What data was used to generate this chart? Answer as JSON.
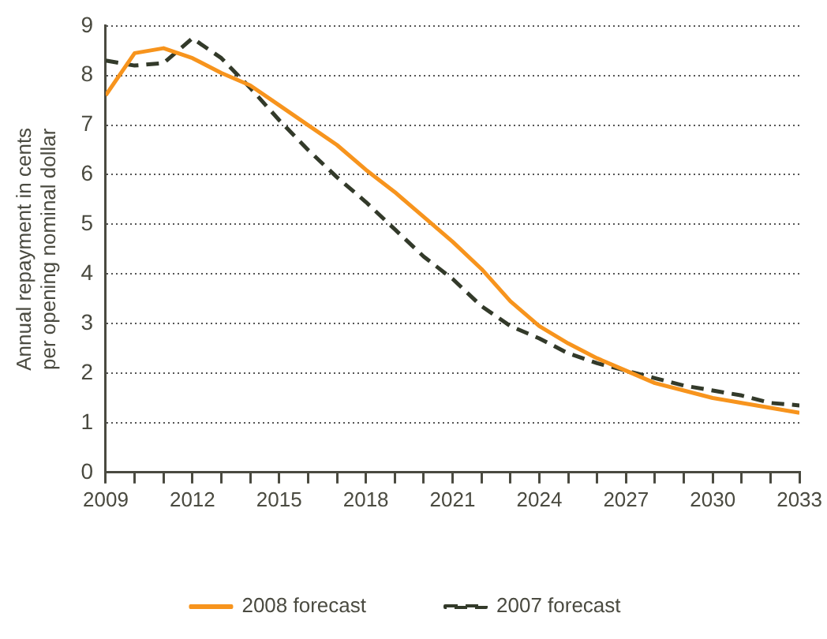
{
  "chart_data": {
    "type": "line",
    "ylabel": "Annual repayment in cents per opening nominal dollar",
    "x": [
      2009,
      2010,
      2011,
      2012,
      2013,
      2014,
      2015,
      2016,
      2017,
      2018,
      2019,
      2020,
      2021,
      2022,
      2023,
      2024,
      2025,
      2026,
      2027,
      2028,
      2029,
      2030,
      2031,
      2032,
      2033
    ],
    "series": [
      {
        "name": "2008 forecast",
        "color": "#f7941d",
        "line_style": "solid",
        "values": [
          7.6,
          8.45,
          8.55,
          8.35,
          8.05,
          7.8,
          7.4,
          7.0,
          6.6,
          6.1,
          5.65,
          5.15,
          4.65,
          4.1,
          3.45,
          2.95,
          2.6,
          2.3,
          2.05,
          1.8,
          1.65,
          1.5,
          1.4,
          1.3,
          1.2
        ]
      },
      {
        "name": "2007 forecast",
        "color": "#333a2a",
        "line_style": "dashed",
        "values": [
          8.3,
          8.2,
          8.25,
          8.75,
          8.35,
          7.75,
          7.1,
          6.5,
          5.95,
          5.45,
          4.9,
          4.35,
          3.9,
          3.35,
          2.95,
          2.7,
          2.4,
          2.2,
          2.05,
          1.9,
          1.75,
          1.65,
          1.55,
          1.4,
          1.35
        ]
      }
    ],
    "xlim": [
      2009,
      2033
    ],
    "xticks": [
      2009,
      {
        "value": 2010,
        "label": null
      },
      {
        "value": 2011,
        "label": null
      },
      2012,
      {
        "value": 2013,
        "label": null
      },
      {
        "value": 2014,
        "label": null
      },
      2015,
      {
        "value": 2016,
        "label": null
      },
      {
        "value": 2017,
        "label": null
      },
      2018,
      {
        "value": 2019,
        "label": null
      },
      {
        "value": 2020,
        "label": null
      },
      2021,
      {
        "value": 2022,
        "label": null
      },
      {
        "value": 2023,
        "label": null
      },
      2024,
      {
        "value": 2025,
        "label": null
      },
      {
        "value": 2026,
        "label": null
      },
      2027,
      {
        "value": 2028,
        "label": null
      },
      {
        "value": 2029,
        "label": null
      },
      2030,
      {
        "value": 2031,
        "label": null
      },
      {
        "value": 2032,
        "label": null
      },
      2033
    ],
    "ylim": [
      0,
      9
    ],
    "yticks": [
      0,
      1,
      2,
      3,
      4,
      5,
      6,
      7,
      8,
      9
    ],
    "grid": "y",
    "legend": "bottom",
    "marker": "none"
  }
}
